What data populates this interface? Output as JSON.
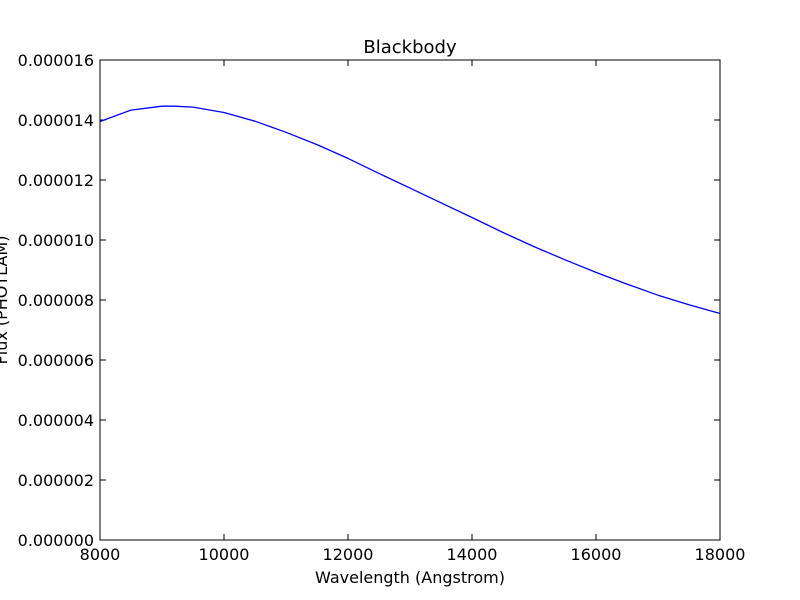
{
  "chart_data": {
    "type": "line",
    "title": "Blackbody",
    "xlabel": "Wavelength (Angstrom)",
    "ylabel": "Flux (PHOTLAM)",
    "xlim": [
      8000,
      18000
    ],
    "ylim": [
      0,
      1.6e-05
    ],
    "xticks": [
      8000,
      10000,
      12000,
      14000,
      16000,
      18000
    ],
    "xtick_labels": [
      "8000",
      "10000",
      "12000",
      "14000",
      "16000",
      "18000"
    ],
    "yticks": [
      0,
      2e-06,
      4e-06,
      6e-06,
      8e-06,
      1e-05,
      1.2e-05,
      1.4e-05,
      1.6e-05
    ],
    "ytick_labels": [
      "0.000000",
      "0.000002",
      "0.000004",
      "0.000006",
      "0.000008",
      "0.000010",
      "0.000012",
      "0.000014",
      "0.000016"
    ],
    "grid": false,
    "series": [
      {
        "color": "#0000ff",
        "x": [
          8000,
          8500,
          9000,
          9200,
          9500,
          10000,
          10500,
          11000,
          11500,
          12000,
          12500,
          13000,
          13500,
          14000,
          14500,
          15000,
          15500,
          16000,
          16500,
          17000,
          17500,
          18000
        ],
        "y": [
          1.395e-05,
          1.433e-05,
          1.446e-05,
          1.446e-05,
          1.443e-05,
          1.425e-05,
          1.396e-05,
          1.359e-05,
          1.318e-05,
          1.272e-05,
          1.222e-05,
          1.173e-05,
          1.124e-05,
          1.075e-05,
          1.025e-05,
          9.78e-06,
          9.34e-06,
          8.92e-06,
          8.53e-06,
          8.16e-06,
          7.84e-06,
          7.55e-06
        ]
      }
    ]
  }
}
